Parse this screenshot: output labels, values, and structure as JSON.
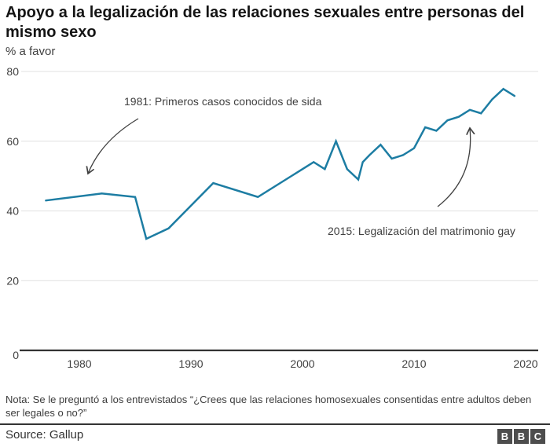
{
  "header": {
    "title": "Apoyo a la legalización de las relaciones sexuales entre personas del mismo sexo",
    "subtitle": "% a favor"
  },
  "chart_data": {
    "type": "line",
    "title": "Apoyo a la legalización de las relaciones sexuales entre personas del mismo sexo",
    "ylabel": "% a favor",
    "xlabel": "",
    "grid": "horizontal",
    "line_color": "#1d7da3",
    "xlim": [
      1974.6,
      2021.1
    ],
    "ylim": [
      0,
      80
    ],
    "yticks": [
      0,
      20,
      40,
      60,
      80
    ],
    "xticks": [
      1980,
      1990,
      2000,
      2010,
      2020
    ],
    "points": [
      [
        1977,
        43
      ],
      [
        1982,
        45
      ],
      [
        1985,
        44
      ],
      [
        1986,
        32
      ],
      [
        1988,
        35
      ],
      [
        1992,
        48
      ],
      [
        1996,
        44
      ],
      [
        1999,
        50
      ],
      [
        2001,
        54
      ],
      [
        2002,
        52
      ],
      [
        2003,
        60
      ],
      [
        2004,
        52
      ],
      [
        2005,
        49
      ],
      [
        2005.4,
        54
      ],
      [
        2006,
        56
      ],
      [
        2007,
        59
      ],
      [
        2008,
        55
      ],
      [
        2009,
        56
      ],
      [
        2010,
        58
      ],
      [
        2011,
        64
      ],
      [
        2012,
        63
      ],
      [
        2013,
        66
      ],
      [
        2014,
        67
      ],
      [
        2015,
        69
      ],
      [
        2016,
        68
      ],
      [
        2017,
        72
      ],
      [
        2018,
        75
      ],
      [
        2019,
        73
      ]
    ],
    "annotations": [
      {
        "text": "1981: Primeros casos conocidos de sida",
        "target_year": 1981
      },
      {
        "text": "2015: Legalización del matrimonio gay",
        "target_year": 2015
      }
    ]
  },
  "footnote": {
    "note": "Nota: Se le preguntó a los entrevistados “¿Crees que las relaciones homosexuales consentidas entre adultos deben ser legales o no?”",
    "source": "Source: Gallup"
  },
  "logo": {
    "letters": [
      "B",
      "B",
      "C"
    ]
  }
}
